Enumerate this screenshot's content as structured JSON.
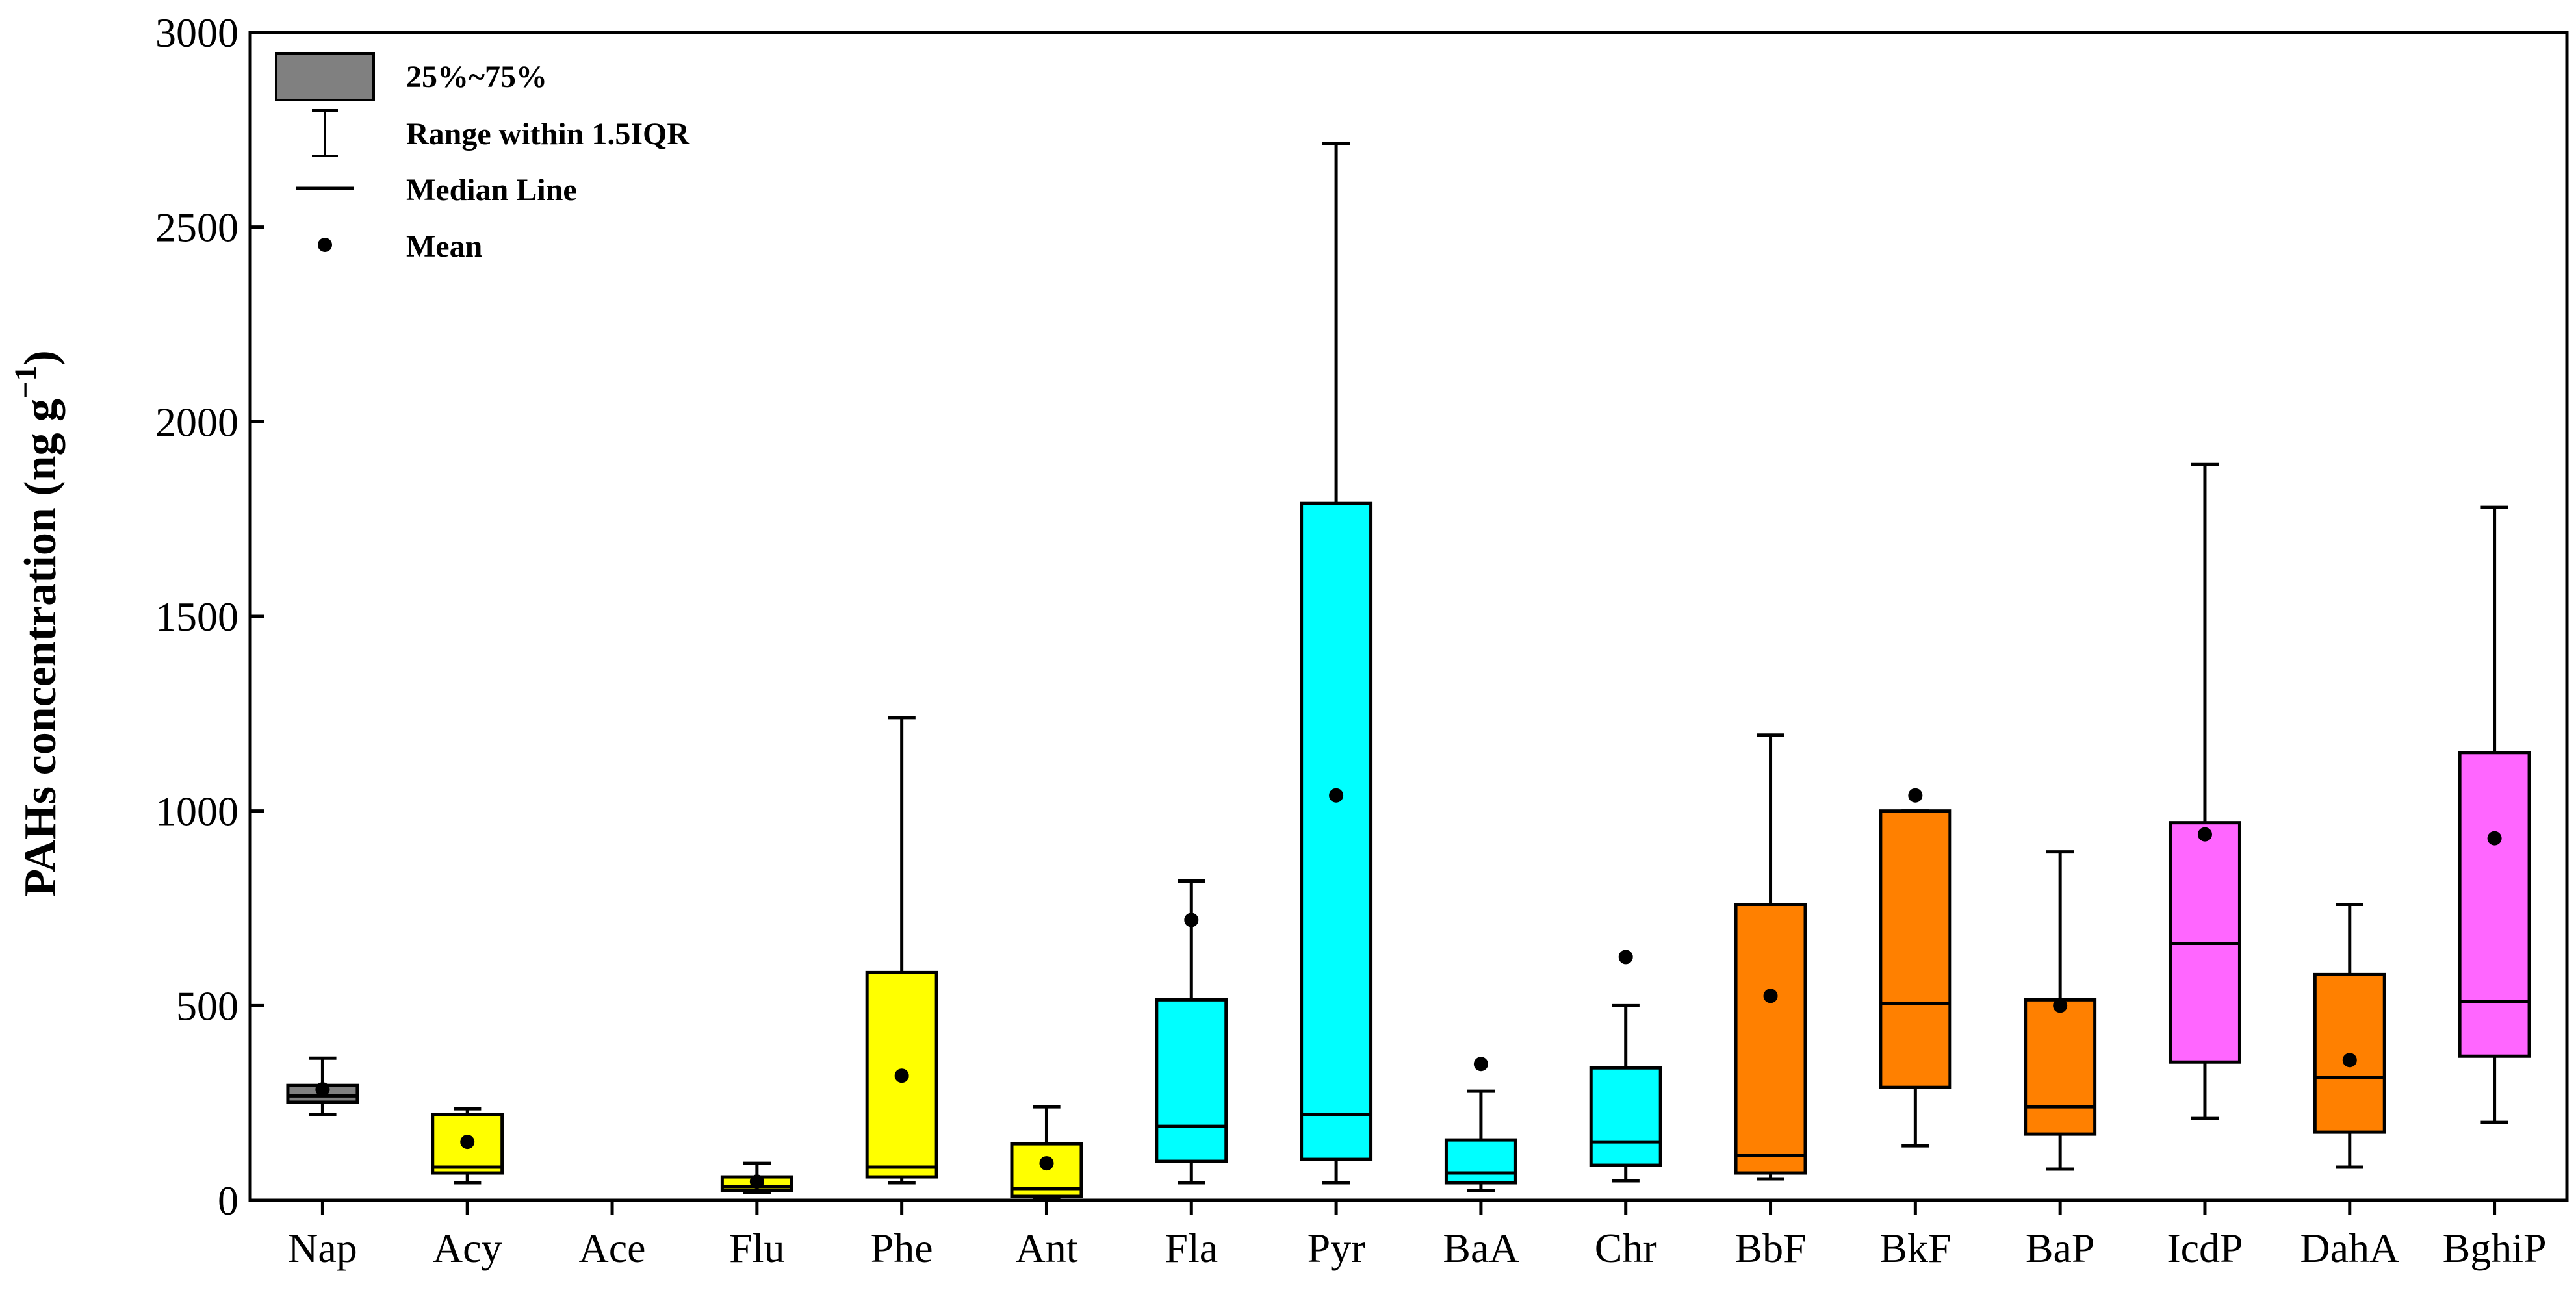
{
  "chart_data": {
    "type": "boxplot",
    "title": "",
    "xlabel": "",
    "ylabel": "PAHs concentration (ng g",
    "ylabel_sup": "−1",
    "ylabel_close": ")",
    "ylim": [
      0,
      3000
    ],
    "yticks": [
      "0",
      "500",
      "1000",
      "1500",
      "2000",
      "2500",
      "3000"
    ],
    "legend": {
      "position": "top-left",
      "items": {
        "box": "25%~75%",
        "whisker": "Range within 1.5IQR",
        "median": "Median Line",
        "mean": "Mean"
      }
    },
    "colors": {
      "gray": "#808080",
      "yellow": "#ffff00",
      "cyan": "#00ffff",
      "orange": "#ff8000",
      "magenta": "#ff66ff"
    },
    "categories": [
      "Nap",
      "Acy",
      "Ace",
      "Flu",
      "Phe",
      "Ant",
      "Fla",
      "Pyr",
      "BaA",
      "Chr",
      "BbF",
      "BkF",
      "BaP",
      "IcdP",
      "DahA",
      "BghiP"
    ],
    "series": [
      {
        "name": "Nap",
        "color": "#808080",
        "whisker_low": 220,
        "q1": 252,
        "median": 268,
        "q3": 295,
        "whisker_high": 365,
        "mean": 285
      },
      {
        "name": "Acy",
        "color": "#ffff00",
        "whisker_low": 45,
        "q1": 70,
        "median": 85,
        "q3": 220,
        "whisker_high": 235,
        "mean": 150
      },
      {
        "name": "Ace",
        "color": "#ffff00",
        "whisker_low": null,
        "q1": null,
        "median": null,
        "q3": null,
        "whisker_high": null,
        "mean": null
      },
      {
        "name": "Flu",
        "color": "#ffff00",
        "whisker_low": 20,
        "q1": 25,
        "median": 35,
        "q3": 60,
        "whisker_high": 95,
        "mean": 48
      },
      {
        "name": "Phe",
        "color": "#ffff00",
        "whisker_low": 45,
        "q1": 60,
        "median": 85,
        "q3": 585,
        "whisker_high": 1240,
        "mean": 320
      },
      {
        "name": "Ant",
        "color": "#ffff00",
        "whisker_low": 5,
        "q1": 10,
        "median": 30,
        "q3": 145,
        "whisker_high": 240,
        "mean": 95
      },
      {
        "name": "Fla",
        "color": "#00ffff",
        "whisker_low": 45,
        "q1": 100,
        "median": 190,
        "q3": 515,
        "whisker_high": 820,
        "mean": 720
      },
      {
        "name": "Pyr",
        "color": "#00ffff",
        "whisker_low": 45,
        "q1": 105,
        "median": 220,
        "q3": 1790,
        "whisker_high": 2715,
        "mean": 1040
      },
      {
        "name": "BaA",
        "color": "#00ffff",
        "whisker_low": 25,
        "q1": 45,
        "median": 70,
        "q3": 155,
        "whisker_high": 280,
        "mean": 350
      },
      {
        "name": "Chr",
        "color": "#00ffff",
        "whisker_low": 50,
        "q1": 90,
        "median": 150,
        "q3": 340,
        "whisker_high": 500,
        "mean": 625
      },
      {
        "name": "BbF",
        "color": "#ff8000",
        "whisker_low": 55,
        "q1": 70,
        "median": 115,
        "q3": 760,
        "whisker_high": 1195,
        "mean": 525
      },
      {
        "name": "BkF",
        "color": "#ff8000",
        "whisker_low": 140,
        "q1": 290,
        "median": 505,
        "q3": 1000,
        "whisker_high": 1000,
        "mean": 1040
      },
      {
        "name": "BaP",
        "color": "#ff8000",
        "whisker_low": 80,
        "q1": 170,
        "median": 240,
        "q3": 515,
        "whisker_high": 895,
        "mean": 500
      },
      {
        "name": "IcdP",
        "color": "#ff66ff",
        "whisker_low": 210,
        "q1": 355,
        "median": 660,
        "q3": 970,
        "whisker_high": 1890,
        "mean": 940
      },
      {
        "name": "DahA",
        "color": "#ff8000",
        "whisker_low": 85,
        "q1": 175,
        "median": 315,
        "q3": 580,
        "whisker_high": 760,
        "mean": 360
      },
      {
        "name": "BghiP",
        "color": "#ff66ff",
        "whisker_low": 200,
        "q1": 370,
        "median": 510,
        "q3": 1150,
        "whisker_high": 1780,
        "mean": 930
      }
    ]
  }
}
